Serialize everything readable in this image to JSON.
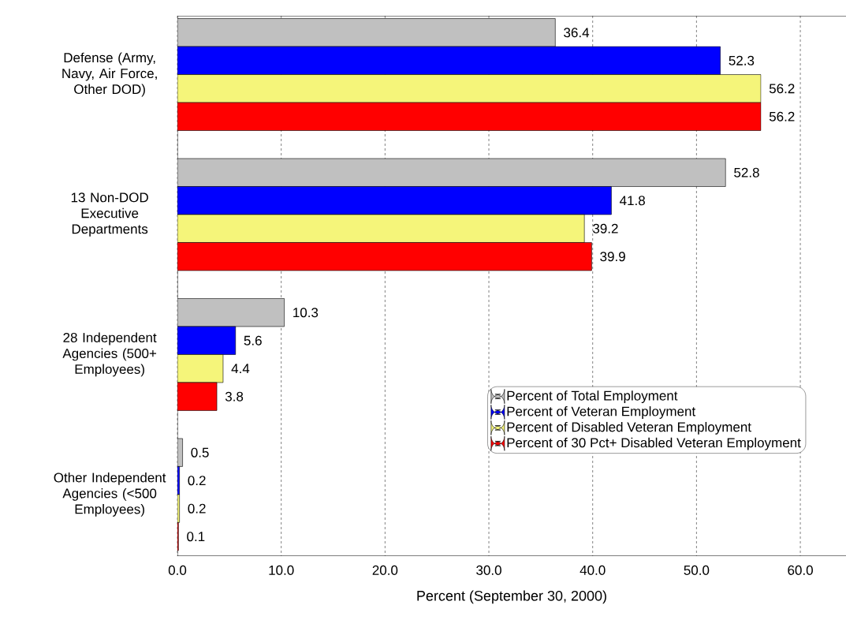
{
  "chart_data": {
    "type": "bar",
    "orientation": "horizontal",
    "xlabel": "Percent (September 30, 2000)",
    "categories": [
      "Defense (Army, Navy, Air Force, Other DOD)",
      "13 Non-DOD Executive Departments",
      "28 Independent Agencies (500+ Employees)",
      "Other Independent Agencies (<500 Employees)"
    ],
    "series": [
      {
        "name": "Percent of Total Employment",
        "color": "#c0c0c0",
        "values": [
          36.4,
          52.8,
          10.3,
          0.5
        ]
      },
      {
        "name": "Percent of Veteran Employment",
        "color": "#0000ff",
        "values": [
          52.3,
          41.8,
          5.6,
          0.2
        ]
      },
      {
        "name": "Percent of Disabled Veteran Employment",
        "color": "#f5f57a",
        "values": [
          56.2,
          39.2,
          4.4,
          0.2
        ]
      },
      {
        "name": "Percent of 30 Pct+ Disabled Veteran Employment",
        "color": "#ff0000",
        "values": [
          56.2,
          39.9,
          3.8,
          0.1
        ]
      }
    ],
    "xlim": [
      0,
      64.4
    ],
    "xticks": [
      {
        "value": 0,
        "label": "0.0"
      },
      {
        "value": 10,
        "label": "10.0"
      },
      {
        "value": 20,
        "label": "20.0"
      },
      {
        "value": 30,
        "label": "30.0"
      },
      {
        "value": 40,
        "label": "40.0"
      },
      {
        "value": 50,
        "label": "50.0"
      },
      {
        "value": 60,
        "label": "60.0"
      }
    ],
    "grid": "x",
    "legend": "bottom right",
    "data_labels": true
  }
}
